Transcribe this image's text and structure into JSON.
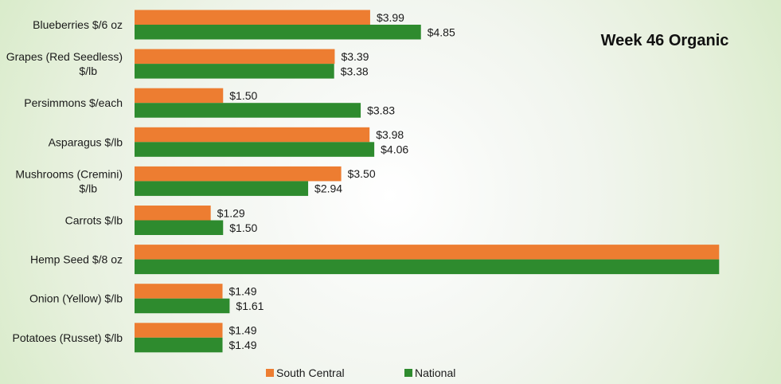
{
  "chart_data": {
    "type": "bar",
    "orientation": "horizontal",
    "title": "Week 46 Organic",
    "categories": [
      [
        "Blueberries $/6 oz"
      ],
      [
        "Grapes (Red Seedless)",
        "$/lb"
      ],
      [
        "Persimmons $/each"
      ],
      [
        "Asparagus $/lb"
      ],
      [
        "Mushrooms (Cremini)",
        "$/lb"
      ],
      [
        "Carrots $/lb"
      ],
      [
        "Hemp Seed $/8 oz"
      ],
      [
        "Onion (Yellow) $/lb"
      ],
      [
        "Potatoes (Russet) $/lb"
      ]
    ],
    "series": [
      {
        "name": "South Central",
        "color": "#ed7d31",
        "values": [
          3.99,
          3.39,
          1.5,
          3.98,
          3.5,
          1.29,
          9.9,
          1.49,
          1.49
        ],
        "labels": [
          "$3.99",
          "$3.39",
          "$1.50",
          "$3.98",
          "$3.50",
          "$1.29",
          null,
          "$1.49",
          "$1.49"
        ]
      },
      {
        "name": "National",
        "color": "#2e8b2e",
        "values": [
          4.85,
          3.38,
          3.83,
          4.06,
          2.94,
          1.5,
          9.9,
          1.61,
          1.49
        ],
        "labels": [
          "$4.85",
          "$3.38",
          "$3.83",
          "$4.06",
          "$2.94",
          "$1.50",
          null,
          "$1.61",
          "$1.49"
        ]
      }
    ],
    "xlim": [
      0,
      9.95
    ],
    "grid": false,
    "legend_position": "bottom"
  }
}
